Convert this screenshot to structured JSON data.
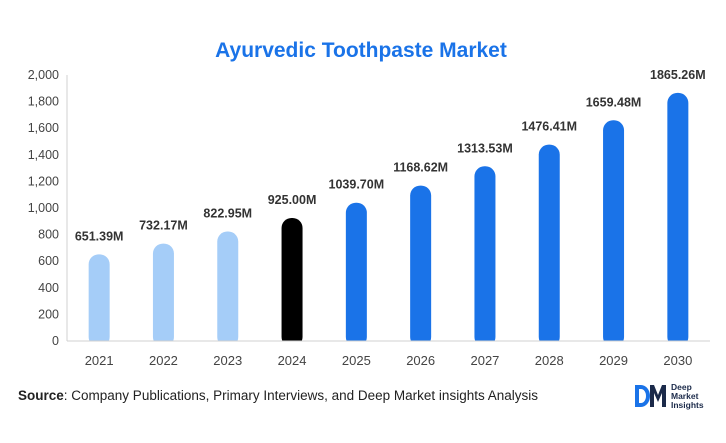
{
  "colors": {
    "title": "#1a73e8",
    "historical": "#a5cdf8",
    "current": "#000000",
    "forecast": "#1a73e8"
  },
  "chart_data": {
    "type": "bar",
    "title": "Ayurvedic Toothpaste Market",
    "xlabel": "",
    "ylabel": "",
    "ylim": [
      0,
      2000
    ],
    "yticks": [
      "0",
      "200",
      "400",
      "600",
      "800",
      "1,000",
      "1,200",
      "1,400",
      "1,600",
      "1,800",
      "2,000"
    ],
    "ytick_values": [
      0,
      200,
      400,
      600,
      800,
      1000,
      1200,
      1400,
      1600,
      1800,
      2000
    ],
    "grid": false,
    "categories": [
      "2021",
      "2022",
      "2023",
      "2024",
      "2025",
      "2026",
      "2027",
      "2028",
      "2029",
      "2030"
    ],
    "values": [
      651.39,
      732.17,
      822.95,
      925.0,
      1039.7,
      1168.62,
      1313.53,
      1476.41,
      1659.48,
      1865.26
    ],
    "data_labels": [
      "651.39M",
      "732.17M",
      "822.95M",
      "925.00M",
      "1039.70M",
      "1168.62M",
      "1313.53M",
      "1476.41M",
      "1659.48M",
      "1865.26M"
    ],
    "bar_colors": [
      "#a5cdf8",
      "#a5cdf8",
      "#a5cdf8",
      "#000000",
      "#1a73e8",
      "#1a73e8",
      "#1a73e8",
      "#1a73e8",
      "#1a73e8",
      "#1a73e8"
    ]
  },
  "source": {
    "label": "Source",
    "text": ": Company Publications, Primary Interviews, and Deep Market insights Analysis"
  },
  "brand": {
    "logo_icon": "dm-logo-icon",
    "line1": "Deep",
    "line2": "Market",
    "line3": "Insights"
  }
}
